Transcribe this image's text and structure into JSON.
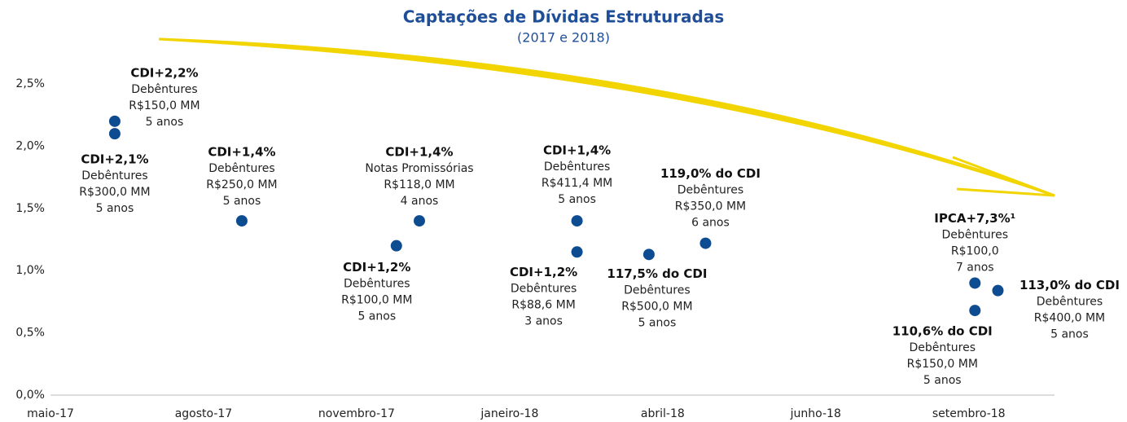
{
  "chart_data": {
    "type": "scatter",
    "title": "Captações de Dívidas Estruturadas",
    "subtitle": "(2017 e 2018)",
    "color": "#0e4c92",
    "x": [
      0.42,
      0.42,
      1.25,
      2.26,
      2.41,
      3.44,
      3.44,
      3.91,
      4.28,
      6.04,
      6.04,
      6.19
    ],
    "values": [
      2.2,
      2.1,
      1.4,
      1.2,
      1.4,
      1.4,
      1.15,
      1.13,
      1.22,
      0.9,
      0.68,
      0.84
    ],
    "annotations": [
      {
        "title": "CDI+2,2%",
        "lines": [
          "Debêntures",
          "R$150,0 MM",
          "5 anos"
        ]
      },
      {
        "title": "CDI+2,1%",
        "lines": [
          "Debêntures",
          "R$300,0 MM",
          "5 anos"
        ]
      },
      {
        "title": "CDI+1,4%",
        "lines": [
          "Debêntures",
          "R$250,0 MM",
          "5 anos"
        ]
      },
      {
        "title": "CDI+1,2%",
        "lines": [
          "Debêntures",
          "R$100,0 MM",
          "5 anos"
        ]
      },
      {
        "title": "CDI+1,4%",
        "lines": [
          "Notas Promissórias",
          "R$118,0 MM",
          "4 anos"
        ]
      },
      {
        "title": "CDI+1,4%",
        "lines": [
          "Debêntures",
          "R$411,4 MM",
          "5 anos"
        ]
      },
      {
        "title": "CDI+1,2%",
        "lines": [
          "Debêntures",
          "R$88,6 MM",
          "3 anos"
        ]
      },
      {
        "title": "117,5% do CDI",
        "lines": [
          "Debêntures",
          "R$500,0 MM",
          "5 anos"
        ]
      },
      {
        "title": "119,0% do CDI",
        "lines": [
          "Debêntures",
          "R$350,0 MM",
          "6 anos"
        ]
      },
      {
        "title": "IPCA+7,3%¹",
        "lines": [
          "Debêntures",
          "R$100,0",
          "7 anos"
        ]
      },
      {
        "title": "110,6% do CDI",
        "lines": [
          "Debêntures",
          "R$150,0 MM",
          "5 anos"
        ]
      },
      {
        "title": "113,0% do CDI",
        "lines": [
          "Debêntures",
          "R$400,0 MM",
          "5 anos"
        ]
      }
    ],
    "xlim": [
      0,
      6.56
    ],
    "xticks": [
      {
        "value": 0,
        "label": "maio-17"
      },
      {
        "value": 1,
        "label": "agosto-17"
      },
      {
        "value": 2,
        "label": "novembro-17"
      },
      {
        "value": 3,
        "label": "janeiro-18"
      },
      {
        "value": 4,
        "label": "abril-18"
      },
      {
        "value": 5,
        "label": "junho-18"
      },
      {
        "value": 6,
        "label": "setembro-18"
      }
    ],
    "ylim": [
      0,
      2.5
    ],
    "yticks": [
      {
        "value": 0,
        "label": "0,0%"
      },
      {
        "value": 0.5,
        "label": "0,5%"
      },
      {
        "value": 1,
        "label": "1,0%"
      },
      {
        "value": 1.5,
        "label": "1,5%"
      },
      {
        "value": 2,
        "label": "2,0%"
      },
      {
        "value": 2.5,
        "label": "2,5%"
      }
    ],
    "grid": false
  }
}
